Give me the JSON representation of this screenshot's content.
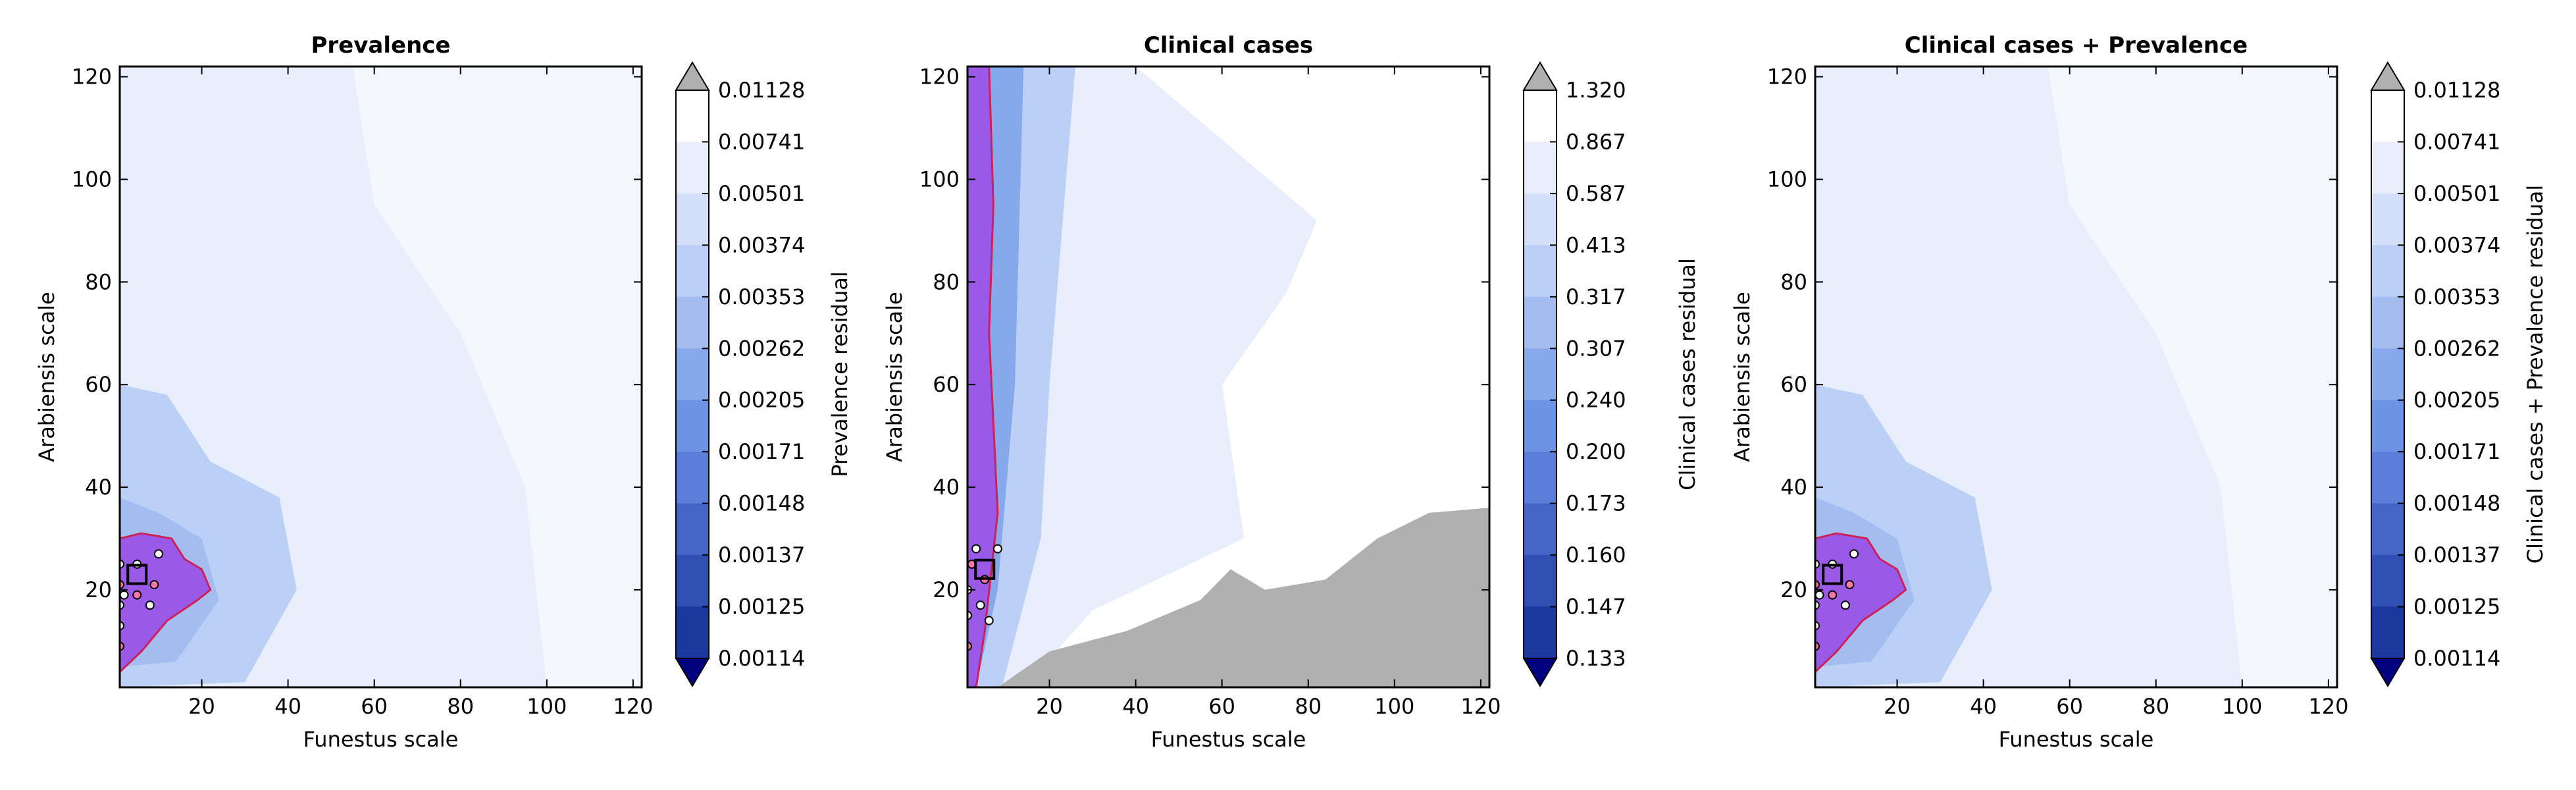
{
  "chart_data": [
    {
      "type": "contour",
      "title": "Prevalence",
      "xlabel": "Funestus scale",
      "ylabel": "Arabiensis scale",
      "xlim": [
        1,
        122
      ],
      "ylim": [
        1,
        122
      ],
      "xticks": [
        20,
        40,
        60,
        80,
        100,
        120
      ],
      "yticks": [
        20,
        40,
        60,
        80,
        100,
        120
      ],
      "colorbar": {
        "label": "Prevalence residual",
        "levels": [
          "0.01128",
          "0.00741",
          "0.00501",
          "0.00374",
          "0.00353",
          "0.00262",
          "0.00205",
          "0.00171",
          "0.00148",
          "0.00137",
          "0.00125",
          "0.00114"
        ],
        "extend": "both",
        "colors": [
          "#ffffff",
          "#e8eefb",
          "#d3e0f8",
          "#bccff5",
          "#a3bdf1",
          "#88a8ec",
          "#6d93e4",
          "#5a7ed9",
          "#4566c6",
          "#304fb2",
          "#1c389d",
          "#0a1f85",
          "#000080"
        ]
      },
      "overlay_colors": {
        "best_region_fill": "#9b59e8",
        "best_region_edge": "#cc2255",
        "above_range": "#b0b0b0"
      },
      "markers": [
        {
          "x": 1,
          "y": 9,
          "kind": "point"
        },
        {
          "x": 1,
          "y": 13,
          "kind": "point"
        },
        {
          "x": 1,
          "y": 17,
          "kind": "point"
        },
        {
          "x": 1,
          "y": 21,
          "kind": "point"
        },
        {
          "x": 1,
          "y": 25,
          "kind": "point"
        },
        {
          "x": 2,
          "y": 19,
          "kind": "point"
        },
        {
          "x": 5,
          "y": 19,
          "kind": "point"
        },
        {
          "x": 5,
          "y": 25,
          "kind": "point"
        },
        {
          "x": 8,
          "y": 17,
          "kind": "point"
        },
        {
          "x": 9,
          "y": 21,
          "kind": "point"
        },
        {
          "x": 10,
          "y": 27,
          "kind": "point"
        },
        {
          "x": 5,
          "y": 23,
          "kind": "box"
        }
      ]
    },
    {
      "type": "contour",
      "title": "Clinical cases",
      "xlabel": "Funestus scale",
      "ylabel": "Arabiensis scale",
      "xlim": [
        1,
        122
      ],
      "ylim": [
        1,
        122
      ],
      "xticks": [
        20,
        40,
        60,
        80,
        100,
        120
      ],
      "yticks": [
        20,
        40,
        60,
        80,
        100,
        120
      ],
      "colorbar": {
        "label": "Clinical cases residual",
        "levels": [
          "1.320",
          "0.867",
          "0.587",
          "0.413",
          "0.317",
          "0.307",
          "0.240",
          "0.200",
          "0.173",
          "0.160",
          "0.147",
          "0.133"
        ],
        "extend": "both",
        "colors": [
          "#ffffff",
          "#e8eefb",
          "#d3e0f8",
          "#bccff5",
          "#a3bdf1",
          "#88a8ec",
          "#6d93e4",
          "#5a7ed9",
          "#4566c6",
          "#304fb2",
          "#1c389d",
          "#0a1f85",
          "#000080"
        ]
      },
      "overlay_colors": {
        "best_region_fill": "#9b59e8",
        "best_region_edge": "#cc2255",
        "above_range": "#b0b0b0"
      },
      "markers": [
        {
          "x": 1,
          "y": 9,
          "kind": "point"
        },
        {
          "x": 1,
          "y": 15,
          "kind": "point"
        },
        {
          "x": 1,
          "y": 20,
          "kind": "point"
        },
        {
          "x": 2,
          "y": 25,
          "kind": "point"
        },
        {
          "x": 3,
          "y": 28,
          "kind": "point"
        },
        {
          "x": 4,
          "y": 17,
          "kind": "point"
        },
        {
          "x": 5,
          "y": 22,
          "kind": "point"
        },
        {
          "x": 8,
          "y": 28,
          "kind": "point"
        },
        {
          "x": 6,
          "y": 14,
          "kind": "point"
        },
        {
          "x": 5,
          "y": 24,
          "kind": "box"
        }
      ]
    },
    {
      "type": "contour",
      "title": "Clinical cases + Prevalence",
      "xlabel": "Funestus scale",
      "ylabel": "Arabiensis scale",
      "xlim": [
        1,
        122
      ],
      "ylim": [
        1,
        122
      ],
      "xticks": [
        20,
        40,
        60,
        80,
        100,
        120
      ],
      "yticks": [
        20,
        40,
        60,
        80,
        100,
        120
      ],
      "colorbar": {
        "label": "Clinical cases + Prevalence residual",
        "levels": [
          "0.01128",
          "0.00741",
          "0.00501",
          "0.00374",
          "0.00353",
          "0.00262",
          "0.00205",
          "0.00171",
          "0.00148",
          "0.00137",
          "0.00125",
          "0.00114"
        ],
        "extend": "both",
        "colors": [
          "#ffffff",
          "#e8eefb",
          "#d3e0f8",
          "#bccff5",
          "#a3bdf1",
          "#88a8ec",
          "#6d93e4",
          "#5a7ed9",
          "#4566c6",
          "#304fb2",
          "#1c389d",
          "#0a1f85",
          "#000080"
        ]
      },
      "overlay_colors": {
        "best_region_fill": "#9b59e8",
        "best_region_edge": "#cc2255",
        "above_range": "#b0b0b0"
      },
      "markers": [
        {
          "x": 1,
          "y": 9,
          "kind": "point"
        },
        {
          "x": 1,
          "y": 13,
          "kind": "point"
        },
        {
          "x": 1,
          "y": 17,
          "kind": "point"
        },
        {
          "x": 1,
          "y": 21,
          "kind": "point"
        },
        {
          "x": 1,
          "y": 25,
          "kind": "point"
        },
        {
          "x": 2,
          "y": 19,
          "kind": "point"
        },
        {
          "x": 5,
          "y": 19,
          "kind": "point"
        },
        {
          "x": 5,
          "y": 25,
          "kind": "point"
        },
        {
          "x": 8,
          "y": 17,
          "kind": "point"
        },
        {
          "x": 9,
          "y": 21,
          "kind": "point"
        },
        {
          "x": 10,
          "y": 27,
          "kind": "point"
        },
        {
          "x": 5,
          "y": 23,
          "kind": "box"
        }
      ]
    }
  ]
}
